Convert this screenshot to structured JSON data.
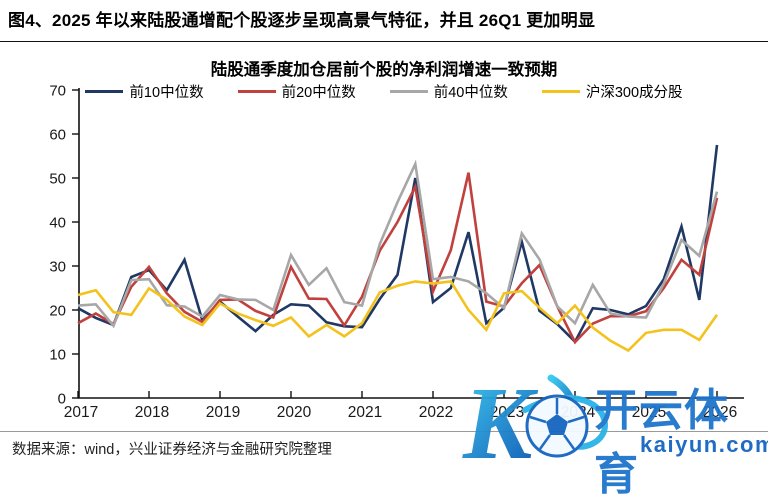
{
  "header": {
    "title": "图4、2025 年以来陆股通增配个股逐步呈现高景气特征，并且 26Q1 更加明显"
  },
  "footer": {
    "source": "数据来源：wind，兴业证券经济与金融研究院整理"
  },
  "watermark": {
    "brand": "开云体育",
    "url": "kaiyun.com",
    "brand_color": "#1e74cc",
    "url_color": "#1565c0",
    "logo_gradient_start": "#35c8f0",
    "logo_gradient_end": "#0d5bb5"
  },
  "colors": {
    "axis": "#111111",
    "tick_label": "#1a1a1a",
    "divider": "#9a9a9a"
  },
  "chart_data": {
    "type": "line",
    "title": "陆股通季度加仓居前个股的净利润增速一致预期",
    "xlabel": "",
    "ylabel": "",
    "ylim": [
      0,
      70
    ],
    "y_ticks": [
      0,
      10,
      20,
      30,
      40,
      50,
      60,
      70
    ],
    "x_tick_labels": [
      "2017",
      "2018",
      "2019",
      "2020",
      "2021",
      "2022",
      "2023",
      "2024",
      "2025",
      "2026"
    ],
    "grid": false,
    "legend_position": "top",
    "categories": [
      "2017Q1",
      "2017Q2",
      "2017Q3",
      "2017Q4",
      "2018Q1",
      "2018Q2",
      "2018Q3",
      "2018Q4",
      "2019Q1",
      "2019Q2",
      "2019Q3",
      "2019Q4",
      "2020Q1",
      "2020Q2",
      "2020Q3",
      "2020Q4",
      "2021Q1",
      "2021Q2",
      "2021Q3",
      "2021Q4",
      "2022Q1",
      "2022Q2",
      "2022Q3",
      "2022Q4",
      "2023Q1",
      "2023Q2",
      "2023Q3",
      "2023Q4",
      "2024Q1",
      "2024Q2",
      "2024Q3",
      "2024Q4",
      "2025Q1",
      "2025Q2",
      "2025Q3",
      "2025Q4",
      "2026Q1"
    ],
    "series": [
      {
        "name": "前10中位数",
        "color": "#1f3864",
        "values": [
          20.4,
          18.2,
          16.6,
          27.5,
          29.1,
          24.5,
          31.4,
          17.7,
          21.9,
          18.5,
          15.2,
          18.9,
          21.3,
          21.0,
          17.2,
          16.3,
          16.1,
          22.5,
          28.0,
          50.0,
          21.8,
          25.0,
          37.7,
          17.0,
          20.5,
          35.5,
          19.8,
          16.8,
          12.8,
          20.4,
          20.0,
          19.0,
          20.9,
          27.0,
          39.0,
          22.3,
          57.5
        ]
      },
      {
        "name": "前20中位数",
        "color": "#c0413d",
        "values": [
          17.0,
          19.2,
          16.8,
          25.3,
          29.8,
          23.8,
          19.6,
          17.3,
          22.3,
          22.4,
          19.8,
          18.3,
          29.8,
          22.6,
          22.5,
          16.5,
          23.0,
          33.5,
          40.0,
          48.0,
          24.2,
          33.6,
          51.2,
          21.9,
          20.8,
          26.1,
          30.2,
          20.8,
          12.7,
          16.9,
          18.6,
          18.6,
          19.7,
          25.0,
          31.4,
          28.0,
          45.5
        ]
      },
      {
        "name": "前40中位数",
        "color": "#a7a7a7",
        "values": [
          21.0,
          21.3,
          16.4,
          26.8,
          27.0,
          21.1,
          20.8,
          18.5,
          23.4,
          22.4,
          22.3,
          20.0,
          32.5,
          25.7,
          29.5,
          21.8,
          21.0,
          35.0,
          44.5,
          53.2,
          27.0,
          27.5,
          26.5,
          23.8,
          20.4,
          37.4,
          31.5,
          20.8,
          17.0,
          25.7,
          19.2,
          18.5,
          18.3,
          26.0,
          35.9,
          32.3,
          46.9
        ]
      },
      {
        "name": "沪深300成分股",
        "color": "#f3c21c",
        "values": [
          23.4,
          24.5,
          19.5,
          18.9,
          24.9,
          22.3,
          18.5,
          16.6,
          21.5,
          19.2,
          17.7,
          16.4,
          18.3,
          14.0,
          16.6,
          14.0,
          17.0,
          24.0,
          25.5,
          26.5,
          26.0,
          26.5,
          20.0,
          15.5,
          23.8,
          24.3,
          20.5,
          17.0,
          21.0,
          16.0,
          13.0,
          10.8,
          14.8,
          15.5,
          15.5,
          13.2,
          18.9
        ]
      }
    ]
  }
}
